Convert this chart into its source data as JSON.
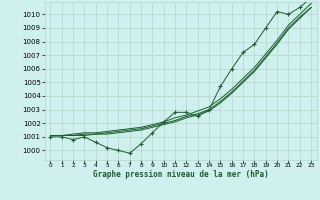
{
  "title": "Graphe pression niveau de la mer (hPa)",
  "ylabel_ticks": [
    1000,
    1001,
    1002,
    1003,
    1004,
    1005,
    1006,
    1007,
    1008,
    1009,
    1010
  ],
  "xlim": [
    -0.5,
    23.5
  ],
  "ylim": [
    999.3,
    1010.9
  ],
  "bg_color": "#cff0ee",
  "grid_color": "#b0d8c8",
  "line_color": "#1a5c2a",
  "hours": [
    0,
    1,
    2,
    3,
    4,
    5,
    6,
    7,
    8,
    9,
    10,
    11,
    12,
    13,
    14,
    15,
    16,
    17,
    18,
    19,
    20,
    21,
    22,
    23
  ],
  "main_data": [
    1001.0,
    1001.0,
    1000.8,
    1001.0,
    1000.6,
    1000.2,
    1000.0,
    999.8,
    1000.5,
    1001.3,
    1002.1,
    1002.8,
    1002.8,
    1002.5,
    1003.0,
    1004.7,
    1006.0,
    1007.2,
    1007.8,
    1009.0,
    1010.2,
    1010.0,
    1010.5,
    1011.2
  ],
  "smooth1": [
    1001.1,
    1001.1,
    1001.1,
    1001.2,
    1001.2,
    1001.3,
    1001.4,
    1001.5,
    1001.6,
    1001.8,
    1002.0,
    1002.2,
    1002.5,
    1002.7,
    1003.0,
    1003.6,
    1004.3,
    1005.1,
    1005.9,
    1006.9,
    1007.9,
    1009.0,
    1009.8,
    1010.5
  ],
  "smooth2": [
    1001.1,
    1001.1,
    1001.1,
    1001.1,
    1001.2,
    1001.2,
    1001.3,
    1001.4,
    1001.5,
    1001.7,
    1001.9,
    1002.1,
    1002.4,
    1002.6,
    1002.9,
    1003.5,
    1004.2,
    1005.0,
    1005.8,
    1006.8,
    1007.8,
    1008.9,
    1009.7,
    1010.5
  ],
  "smooth3": [
    1001.1,
    1001.1,
    1001.2,
    1001.3,
    1001.3,
    1001.4,
    1001.5,
    1001.6,
    1001.7,
    1001.9,
    1002.1,
    1002.4,
    1002.6,
    1002.9,
    1003.2,
    1003.8,
    1004.5,
    1005.3,
    1006.1,
    1007.1,
    1008.1,
    1009.2,
    1010.0,
    1010.8
  ]
}
